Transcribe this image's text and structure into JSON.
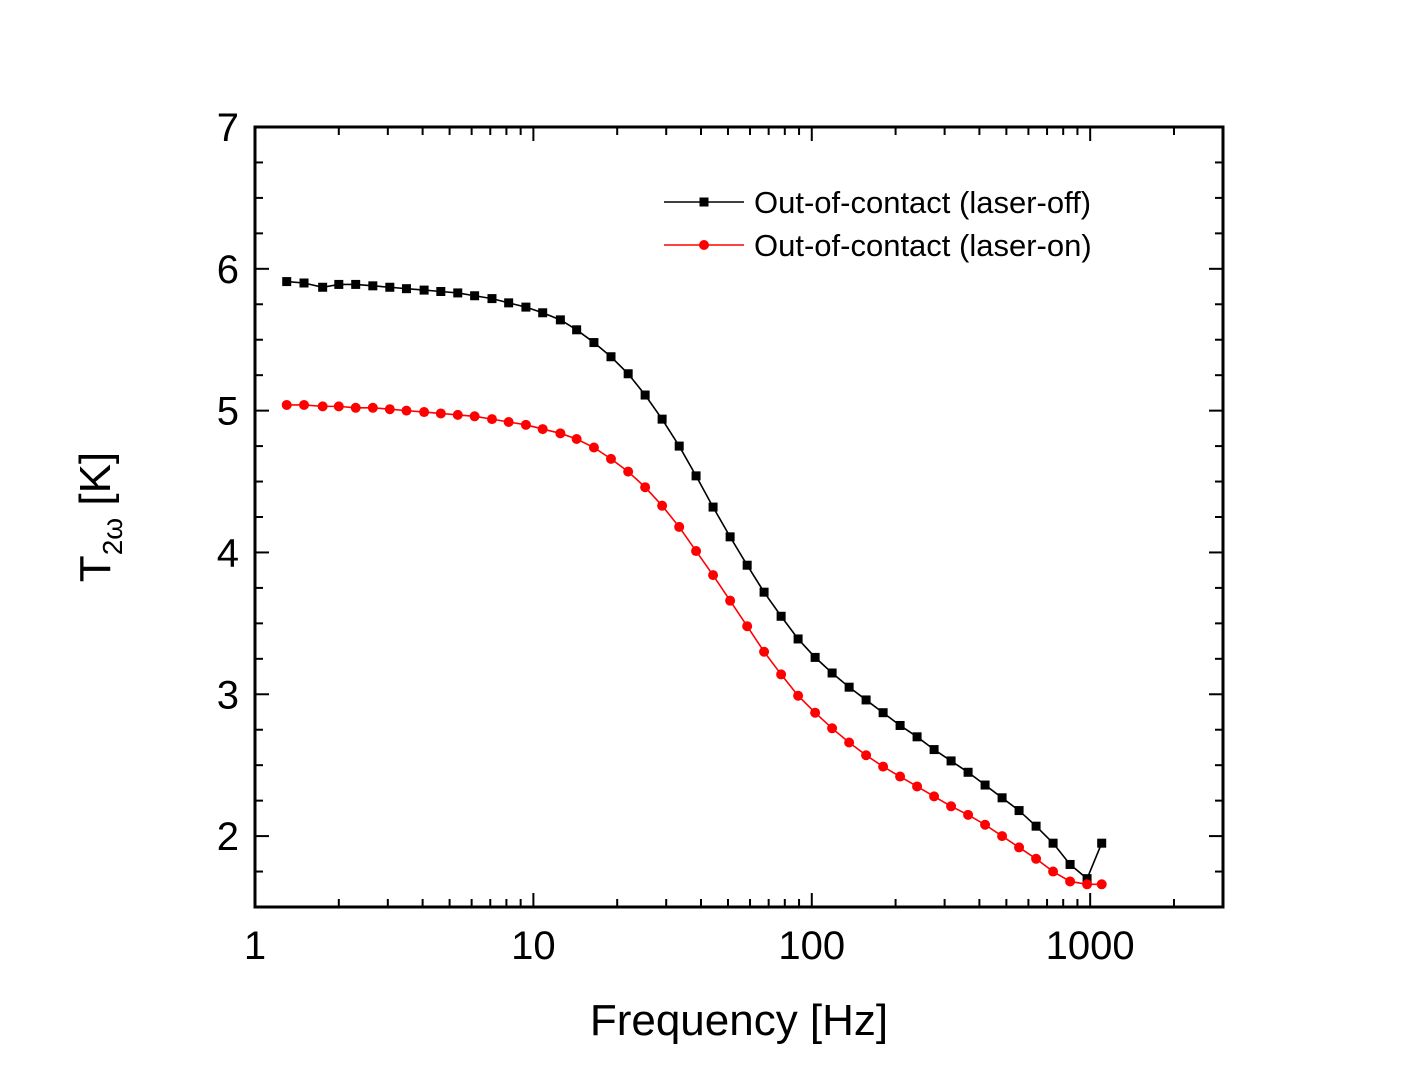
{
  "chart_data": {
    "type": "line",
    "title": "",
    "xlabel": "Frequency [Hz]",
    "ylabel": {
      "main": "T",
      "sub": "2ω",
      "unit": " [K]"
    },
    "xscale": "log",
    "xlim": [
      1,
      3000
    ],
    "ylim": [
      1.5,
      7
    ],
    "xticks": [
      {
        "value": 1,
        "label": "1"
      },
      {
        "value": 10,
        "label": "10"
      },
      {
        "value": 100,
        "label": "100"
      },
      {
        "value": 1000,
        "label": "1000"
      }
    ],
    "yticks": [
      {
        "value": 2,
        "label": "2"
      },
      {
        "value": 3,
        "label": "3"
      },
      {
        "value": 4,
        "label": "4"
      },
      {
        "value": 5,
        "label": "5"
      },
      {
        "value": 6,
        "label": "6"
      },
      {
        "value": 7,
        "label": "7"
      }
    ],
    "grid": false,
    "legend_position": "top-right",
    "series": [
      {
        "name": "Out-of-contact (laser-off)",
        "color": "#000000",
        "marker": "square",
        "x": [
          1.3,
          1.5,
          1.75,
          2.0,
          2.3,
          2.65,
          3.05,
          3.5,
          4.05,
          4.65,
          5.35,
          6.15,
          7.1,
          8.15,
          9.4,
          10.8,
          12.5,
          14.3,
          16.5,
          19.0,
          21.9,
          25.2,
          29.0,
          33.4,
          38.4,
          44.2,
          50.9,
          58.6,
          67.4,
          77.6,
          89.3,
          102.8,
          118.3,
          136.2,
          156.7,
          180.4,
          207.6,
          238.9,
          275.0,
          316.5,
          364.3,
          419.3,
          482.6,
          555.4,
          639.3,
          735.8,
          846.9,
          974.7,
          1100.0
        ],
        "values": [
          5.91,
          5.9,
          5.87,
          5.89,
          5.89,
          5.88,
          5.87,
          5.86,
          5.85,
          5.84,
          5.83,
          5.81,
          5.79,
          5.76,
          5.73,
          5.69,
          5.64,
          5.57,
          5.48,
          5.38,
          5.26,
          5.11,
          4.94,
          4.75,
          4.54,
          4.32,
          4.11,
          3.91,
          3.72,
          3.55,
          3.39,
          3.26,
          3.15,
          3.05,
          2.96,
          2.87,
          2.78,
          2.7,
          2.61,
          2.53,
          2.45,
          2.36,
          2.27,
          2.18,
          2.07,
          1.95,
          1.8,
          1.7,
          1.95
        ]
      },
      {
        "name": "Out-of-contact (laser-on)",
        "color": "#ff0000",
        "marker": "circle",
        "x": [
          1.3,
          1.5,
          1.75,
          2.0,
          2.3,
          2.65,
          3.05,
          3.5,
          4.05,
          4.65,
          5.35,
          6.15,
          7.1,
          8.15,
          9.4,
          10.8,
          12.5,
          14.3,
          16.5,
          19.0,
          21.9,
          25.2,
          29.0,
          33.4,
          38.4,
          44.2,
          50.9,
          58.6,
          67.4,
          77.6,
          89.3,
          102.8,
          118.3,
          136.2,
          156.7,
          180.4,
          207.6,
          238.9,
          275.0,
          316.5,
          364.3,
          419.3,
          482.6,
          555.4,
          639.3,
          735.8,
          846.9,
          974.7,
          1100.0
        ],
        "values": [
          5.04,
          5.04,
          5.03,
          5.03,
          5.02,
          5.02,
          5.01,
          5.0,
          4.99,
          4.98,
          4.97,
          4.96,
          4.94,
          4.92,
          4.9,
          4.87,
          4.84,
          4.8,
          4.74,
          4.66,
          4.57,
          4.46,
          4.33,
          4.18,
          4.01,
          3.84,
          3.66,
          3.48,
          3.3,
          3.14,
          2.99,
          2.87,
          2.76,
          2.66,
          2.57,
          2.49,
          2.42,
          2.35,
          2.28,
          2.21,
          2.15,
          2.08,
          2.0,
          1.92,
          1.84,
          1.75,
          1.68,
          1.66,
          1.66
        ]
      }
    ]
  }
}
